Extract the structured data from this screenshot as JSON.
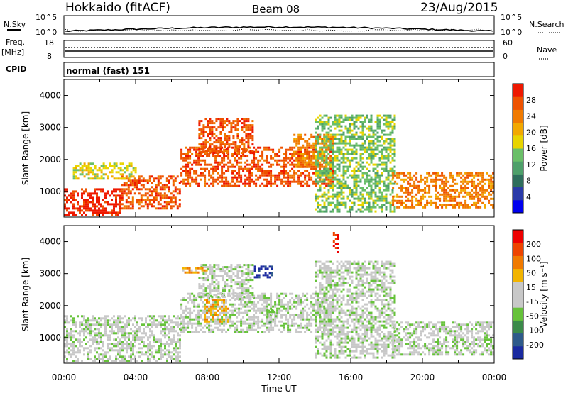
{
  "header": {
    "station": "Hokkaido (fitACF)",
    "beam": "Beam 08",
    "date": "23/Aug/2015"
  },
  "top_panels": {
    "nsky": {
      "label": "N.Sky",
      "ticks": [
        "10^5",
        "10^0"
      ]
    },
    "nsearch": {
      "label": "N.Search",
      "ticks": [
        "10^5",
        "10^0"
      ]
    },
    "freq": {
      "label_top": "Freq.",
      "label_bottom": "[MHz]",
      "ticks": [
        "18",
        "8"
      ]
    },
    "nave": {
      "label": "Nave",
      "ticks": [
        "60",
        "0"
      ]
    },
    "cpid": {
      "label": "CPID",
      "value": "normal (fast) 151"
    }
  },
  "chart_data": [
    {
      "type": "heatmap",
      "title": "Power",
      "ylabel": "Slant Range [km]",
      "xlabel": "Time UT",
      "x_ticks": [
        "00:00",
        "04:00",
        "08:00",
        "12:00",
        "16:00",
        "20:00",
        "00:00"
      ],
      "y_ticks": [
        1000,
        2000,
        3000,
        4000
      ],
      "ylim": [
        200,
        4500
      ],
      "xlim_hours": [
        0,
        24
      ],
      "colorbar": {
        "label": "Power [dB]",
        "ticks": [
          4,
          8,
          12,
          16,
          20,
          24,
          28
        ],
        "colors": [
          "#0000ee",
          "#2a3aa8",
          "#2e6e5c",
          "#4ea06a",
          "#6abf68",
          "#e8d400",
          "#f2a800",
          "#f07a00",
          "#ee5200",
          "#ee1800"
        ]
      },
      "regions": [
        {
          "t0": 0.0,
          "t1": 3.2,
          "r0": 300,
          "r1": 1100,
          "level": 9
        },
        {
          "t0": 3.2,
          "t1": 6.5,
          "r0": 500,
          "r1": 1500,
          "level": 8
        },
        {
          "t0": 6.5,
          "t1": 15.0,
          "r0": 1200,
          "r1": 2400,
          "level": 8
        },
        {
          "t0": 7.5,
          "t1": 10.5,
          "r0": 2200,
          "r1": 3300,
          "level": 8
        },
        {
          "t0": 12.8,
          "t1": 15.0,
          "r0": 1800,
          "r1": 2800,
          "level": 7
        },
        {
          "t0": 14.0,
          "t1": 18.5,
          "r0": 400,
          "r1": 3400,
          "level": 4
        },
        {
          "t0": 18.3,
          "t1": 24.0,
          "r0": 500,
          "r1": 1600,
          "level": 7
        },
        {
          "t0": 0.5,
          "t1": 4.0,
          "r0": 1400,
          "r1": 1900,
          "level": 5
        }
      ]
    },
    {
      "type": "heatmap",
      "title": "Velocity",
      "ylabel": "Slant Range [km]",
      "xlabel": "Time UT",
      "x_ticks": [
        "00:00",
        "04:00",
        "08:00",
        "12:00",
        "16:00",
        "20:00",
        "00:00"
      ],
      "y_ticks": [
        1000,
        2000,
        3000,
        4000
      ],
      "ylim": [
        200,
        4500
      ],
      "xlim_hours": [
        0,
        24
      ],
      "colorbar": {
        "label": "Velocity [m s⁻¹]",
        "ticks": [
          200,
          100,
          50,
          15,
          -15,
          -50,
          -100,
          -200
        ],
        "colors": [
          "#1a2aa0",
          "#2e5a8a",
          "#3b8a4a",
          "#66c23a",
          "#c8c8c8",
          "#c8c8c8",
          "#f2b400",
          "#f07a00",
          "#ee4400",
          "#ee0000"
        ]
      },
      "regions": [
        {
          "t0": 0.0,
          "t1": 6.5,
          "r0": 300,
          "r1": 1700,
          "level": 4
        },
        {
          "t0": 6.5,
          "t1": 15.0,
          "r0": 1200,
          "r1": 2400,
          "level": 4
        },
        {
          "t0": 7.5,
          "t1": 10.5,
          "r0": 2200,
          "r1": 3300,
          "level": 4
        },
        {
          "t0": 14.0,
          "t1": 18.5,
          "r0": 400,
          "r1": 3400,
          "level": 4
        },
        {
          "t0": 18.3,
          "t1": 24.0,
          "r0": 500,
          "r1": 1500,
          "level": 4
        },
        {
          "t0": 7.8,
          "t1": 9.2,
          "r0": 1500,
          "r1": 2200,
          "level": 6
        },
        {
          "t0": 11.3,
          "t1": 11.8,
          "r0": 1500,
          "r1": 1900,
          "level": 3
        },
        {
          "t0": 10.6,
          "t1": 11.6,
          "r0": 2900,
          "r1": 3250,
          "level": 0
        },
        {
          "t0": 15.0,
          "t1": 15.3,
          "r0": 3700,
          "r1": 4300,
          "level": 9
        },
        {
          "t0": 6.6,
          "t1": 8.0,
          "r0": 3050,
          "r1": 3200,
          "level": 6
        }
      ]
    }
  ]
}
